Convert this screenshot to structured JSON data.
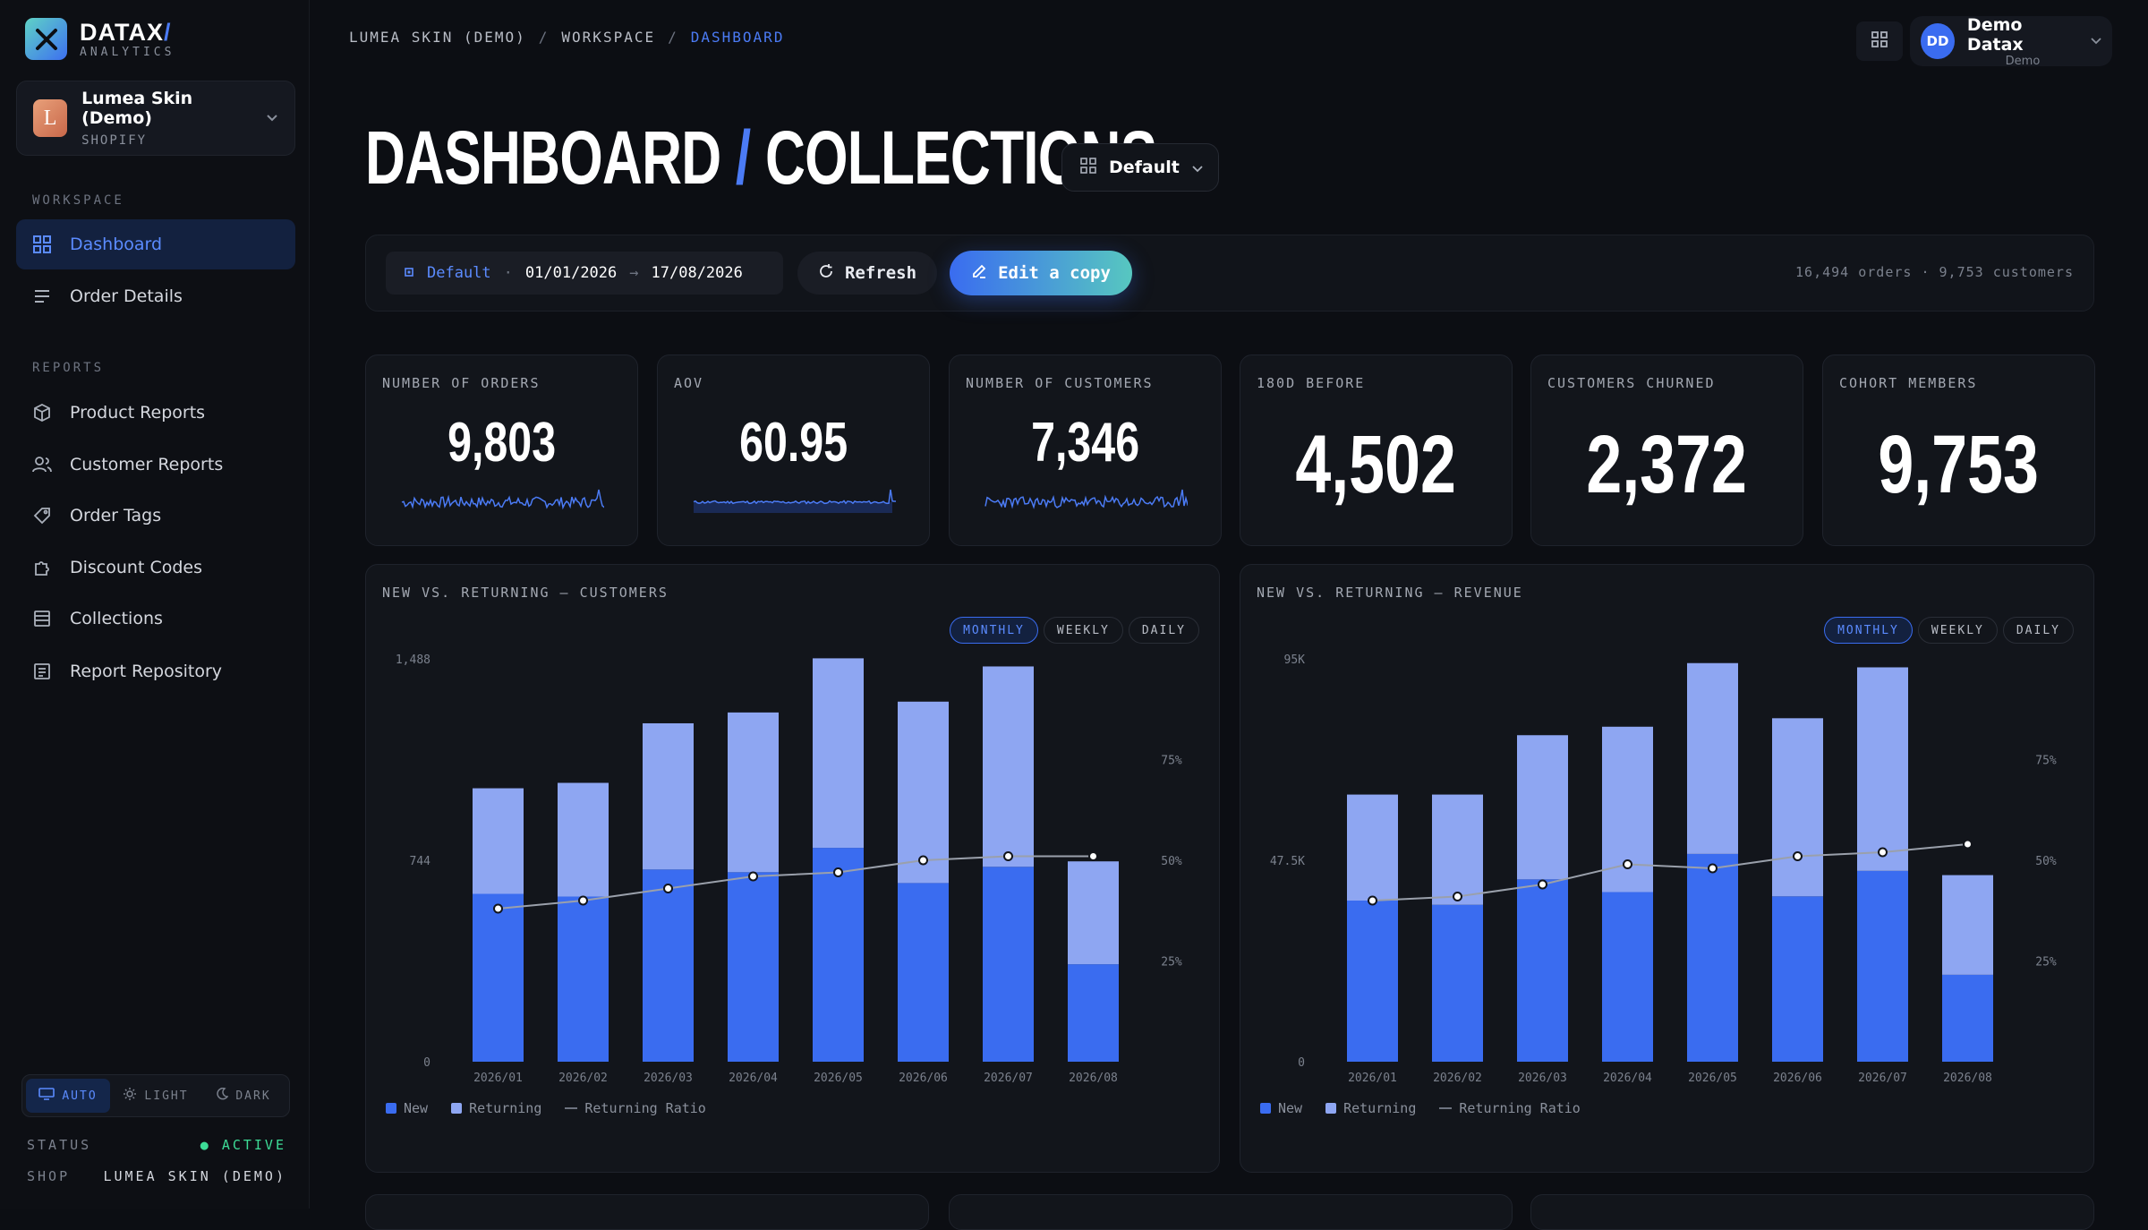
{
  "brand": {
    "name": "DATAX",
    "slash": "/",
    "sub": "ANALYTICS"
  },
  "shop": {
    "initial": "L",
    "name": "Lumea Skin (Demo)",
    "platform": "SHOPIFY"
  },
  "sidebar": {
    "workspace_label": "WORKSPACE",
    "reports_label": "REPORTS",
    "items": [
      {
        "label": "Dashboard",
        "icon": "grid-icon"
      },
      {
        "label": "Order Details",
        "icon": "list-icon"
      },
      {
        "label": "Product Reports",
        "icon": "box-icon"
      },
      {
        "label": "Customer Reports",
        "icon": "users-icon"
      },
      {
        "label": "Order Tags",
        "icon": "tag-icon"
      },
      {
        "label": "Discount Codes",
        "icon": "puzzle-icon"
      },
      {
        "label": "Collections",
        "icon": "stack-icon"
      },
      {
        "label": "Report Repository",
        "icon": "document-icon"
      }
    ],
    "theme": {
      "auto": "AUTO",
      "light": "LIGHT",
      "dark": "DARK"
    },
    "status": {
      "status_key": "STATUS",
      "status_val": "ACTIVE",
      "shop_key": "SHOP",
      "shop_val": "LUMEA SKIN (DEMO)"
    }
  },
  "breadcrumb": {
    "a": "LUMEA SKIN (DEMO)",
    "b": "WORKSPACE",
    "c": "DASHBOARD",
    "sep": "/"
  },
  "user": {
    "initials": "DD",
    "name": "Demo Datax",
    "role": "Demo"
  },
  "title": {
    "a": "DASHBOARD",
    "slash": "/",
    "b": "COLLECTIONS"
  },
  "layout_select": "Default",
  "toolbar": {
    "preset": "Default",
    "dot": "·",
    "start": "01/01/2026",
    "arrow": "→",
    "end": "17/08/2026",
    "refresh": "Refresh",
    "edit": "Edit a copy",
    "summary": "16,494 orders · 9,753 customers"
  },
  "kpis": [
    {
      "label": "NUMBER OF ORDERS",
      "value": "9,803"
    },
    {
      "label": "AOV",
      "value": "60.95"
    },
    {
      "label": "NUMBER OF CUSTOMERS",
      "value": "7,346"
    },
    {
      "label": "180D BEFORE",
      "value": "4,502"
    },
    {
      "label": "CUSTOMERS CHURNED",
      "value": "2,372"
    },
    {
      "label": "COHORT MEMBERS",
      "value": "9,753"
    }
  ],
  "tabs": {
    "monthly": "MONTHLY",
    "weekly": "WEEKLY",
    "daily": "DAILY"
  },
  "legend": {
    "new": "New",
    "returning": "Returning",
    "ratio": "Returning Ratio"
  },
  "colors": {
    "new": "#3a6cf0",
    "returning": "#8ea6f2",
    "ratio": "#9aa0ab",
    "accent": "#4b7bf5"
  },
  "chart_data": [
    {
      "type": "bar",
      "title": "NEW VS. RETURNING — CUSTOMERS",
      "categories": [
        "2026/01",
        "2026/02",
        "2026/03",
        "2026/04",
        "2026/05",
        "2026/06",
        "2026/07",
        "2026/08"
      ],
      "y_ticks": [
        "1,488",
        "744",
        "0"
      ],
      "ylim": [
        0,
        1488
      ],
      "y2_ticks": [
        "75%",
        "50%",
        "25%"
      ],
      "y2lim": [
        0,
        1
      ],
      "series": [
        {
          "name": "New",
          "values": [
            620,
            610,
            710,
            700,
            790,
            660,
            720,
            360
          ]
        },
        {
          "name": "Returning",
          "values": [
            390,
            420,
            540,
            590,
            700,
            670,
            740,
            380
          ]
        },
        {
          "name": "Returning Ratio",
          "values": [
            0.38,
            0.4,
            0.43,
            0.46,
            0.47,
            0.5,
            0.51,
            0.51
          ]
        }
      ]
    },
    {
      "type": "bar",
      "title": "NEW VS. RETURNING — REVENUE",
      "categories": [
        "2026/01",
        "2026/02",
        "2026/03",
        "2026/04",
        "2026/05",
        "2026/06",
        "2026/07",
        "2026/08"
      ],
      "y_ticks": [
        "95K",
        "47.5K",
        "0"
      ],
      "ylim": [
        0,
        95000
      ],
      "y2_ticks": [
        "75%",
        "50%",
        "25%"
      ],
      "y2lim": [
        0,
        1
      ],
      "series": [
        {
          "name": "New",
          "values": [
            38000,
            37000,
            43000,
            40000,
            49000,
            39000,
            45000,
            20500
          ]
        },
        {
          "name": "Returning",
          "values": [
            25000,
            26000,
            34000,
            39000,
            45000,
            42000,
            48000,
            23500
          ]
        },
        {
          "name": "Returning Ratio",
          "values": [
            0.4,
            0.41,
            0.44,
            0.49,
            0.48,
            0.51,
            0.52,
            0.54
          ]
        }
      ]
    }
  ]
}
